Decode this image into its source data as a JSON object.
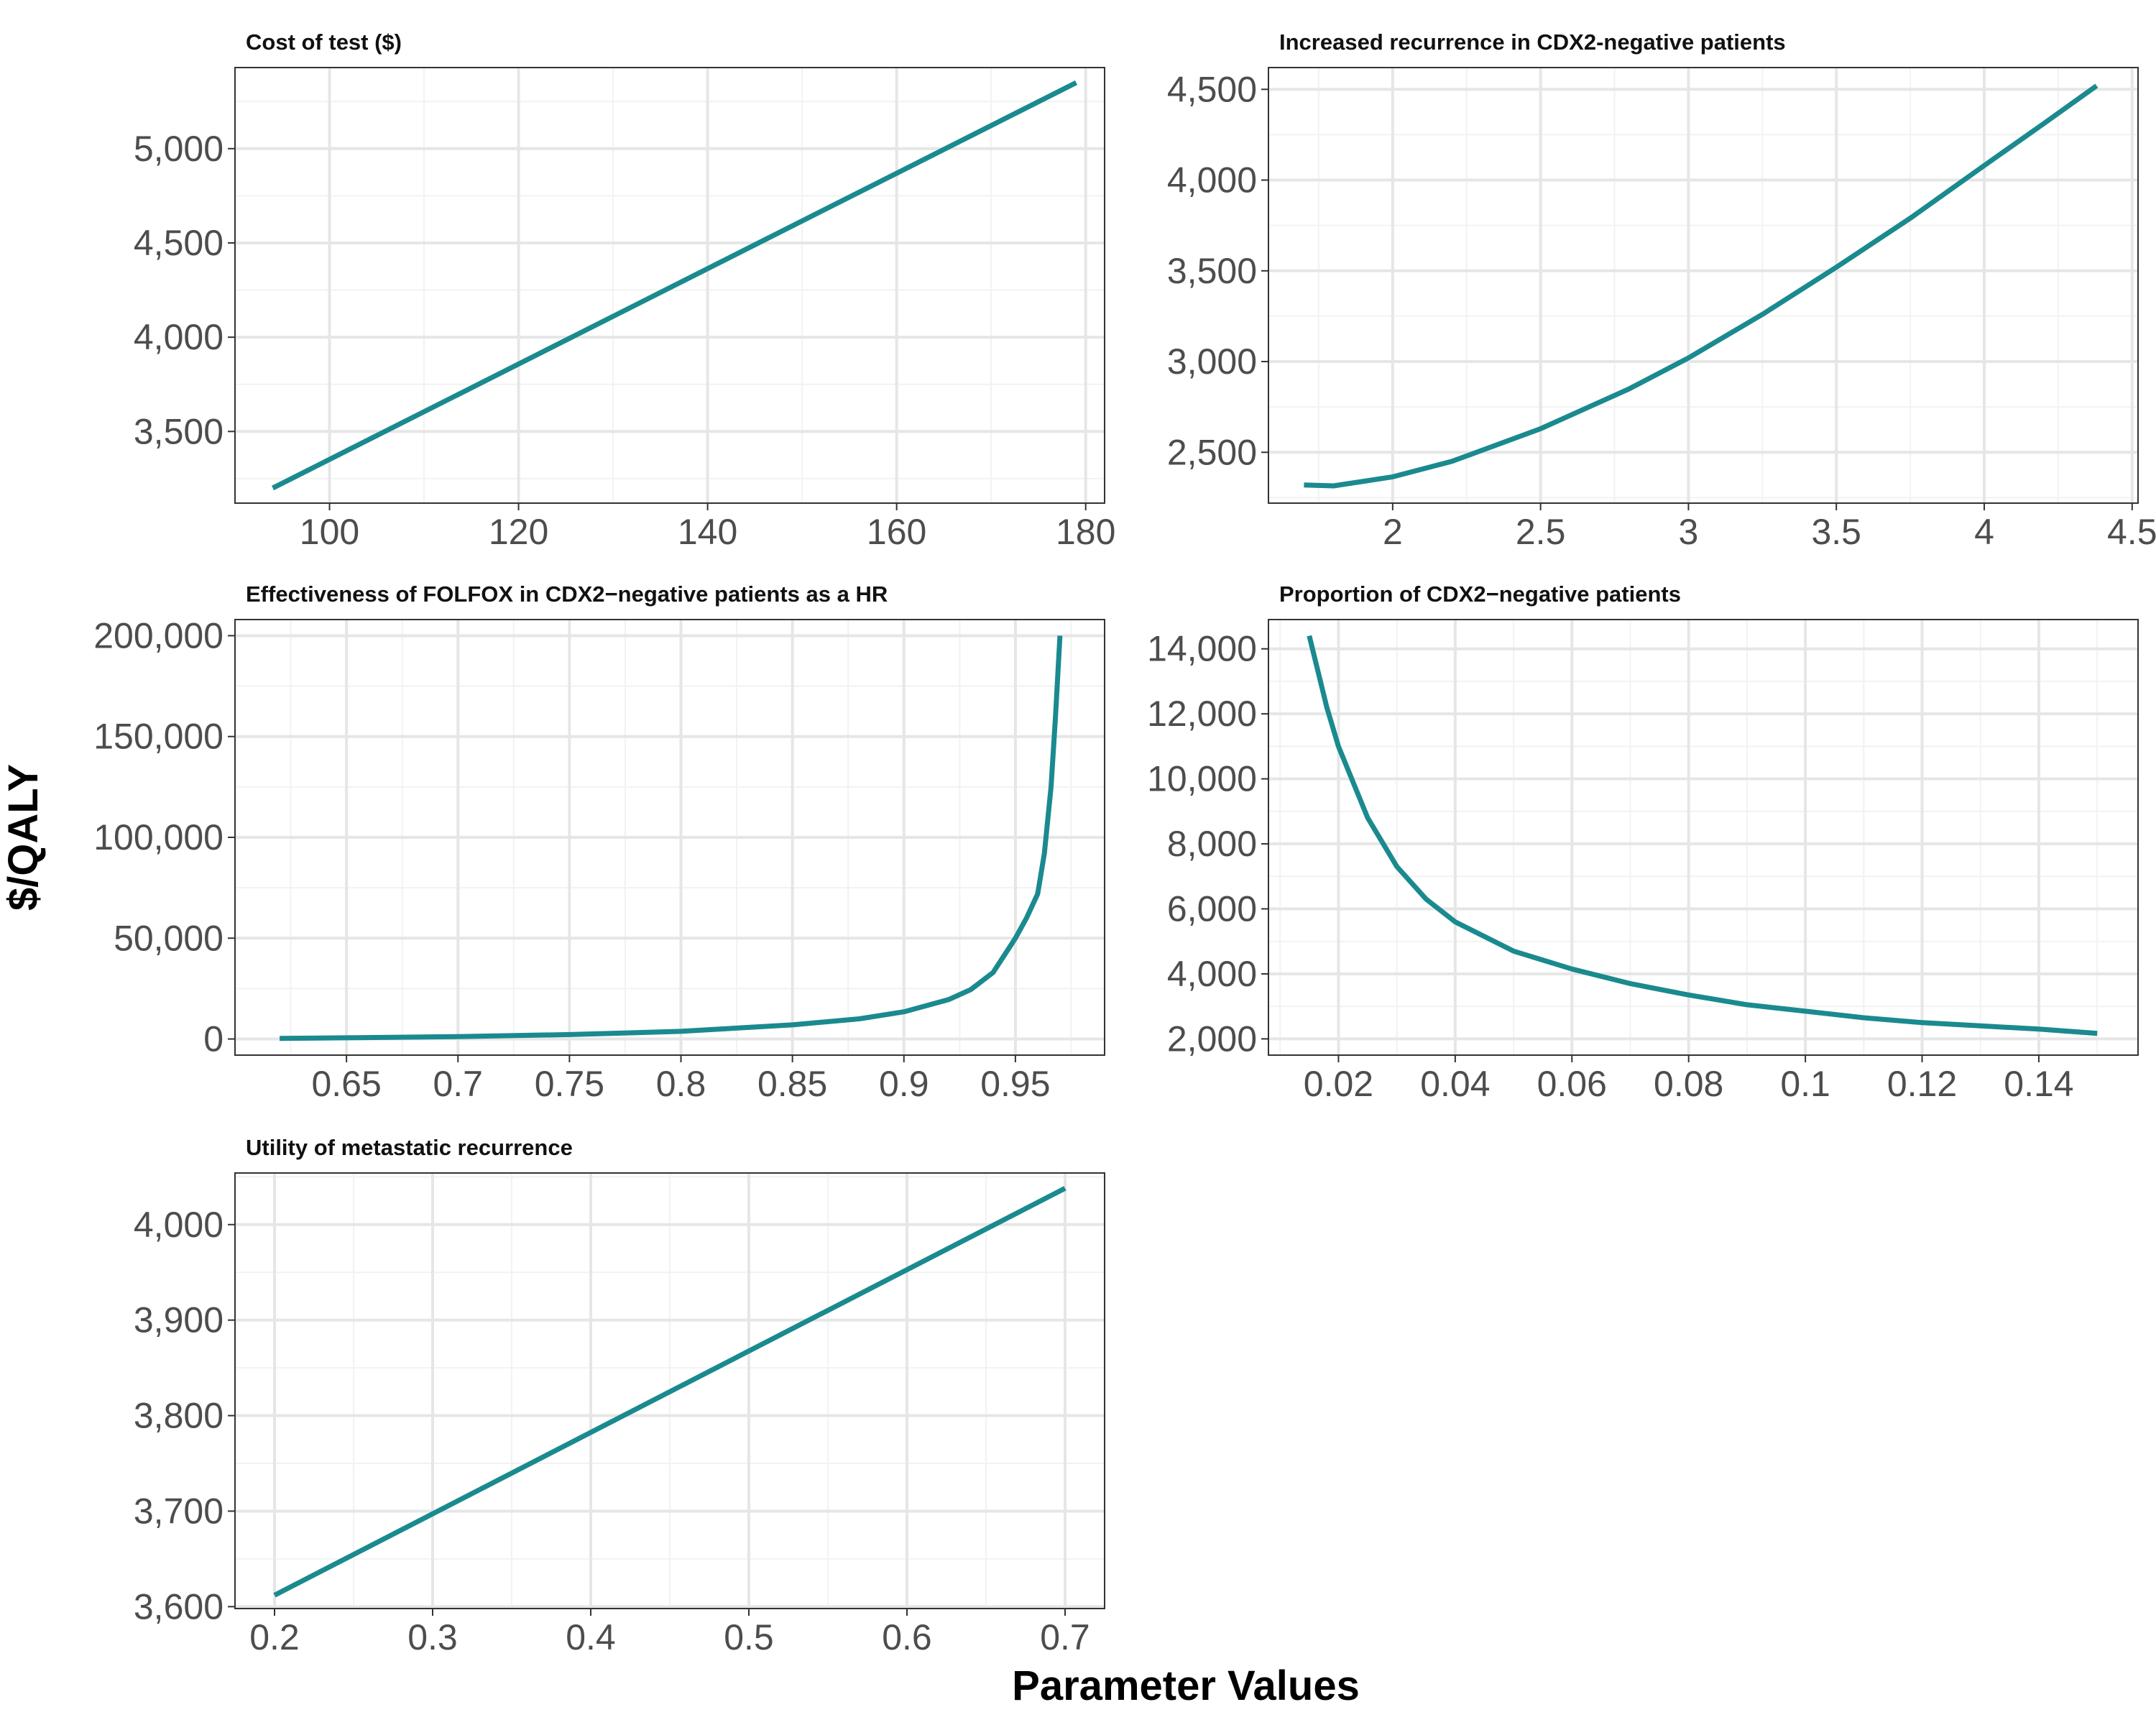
{
  "figure": {
    "ylabel": "$/QALY",
    "xlabel": "Parameter Values",
    "line_color": "#1a8a8f"
  },
  "chart_data": [
    {
      "type": "line",
      "title": "Cost of test ($)",
      "xlim": [
        90,
        182
      ],
      "ylim": [
        3120,
        5430
      ],
      "xticks": [
        100,
        120,
        140,
        160,
        180
      ],
      "xtick_labels": [
        "100",
        "120",
        "140",
        "160",
        "180"
      ],
      "yticks": [
        3500,
        4000,
        4500,
        5000
      ],
      "ytick_labels": [
        "3,500",
        "4,000",
        "4,500",
        "5,000"
      ],
      "series": [
        {
          "x": [
            94,
            179
          ],
          "y": [
            3200,
            5350
          ]
        }
      ]
    },
    {
      "type": "line",
      "title": "Increased recurrence in CDX2-negative patients",
      "xlim": [
        1.58,
        4.52
      ],
      "ylim": [
        2220,
        4620
      ],
      "xticks": [
        2,
        2.5,
        3,
        3.5,
        4,
        4.5
      ],
      "xtick_labels": [
        "2",
        "2.5",
        "3",
        "3.5",
        "4",
        "4.5"
      ],
      "yticks": [
        2500,
        3000,
        3500,
        4000,
        4500
      ],
      "ytick_labels": [
        "2,500",
        "3,000",
        "3,500",
        "4,000",
        "4,500"
      ],
      "series": [
        {
          "x": [
            1.7,
            1.8,
            2.0,
            2.2,
            2.5,
            2.8,
            3.0,
            3.25,
            3.5,
            3.75,
            4.0,
            4.2,
            4.38
          ],
          "y": [
            2320,
            2315,
            2365,
            2450,
            2630,
            2850,
            3020,
            3260,
            3520,
            3790,
            4080,
            4310,
            4520
          ]
        }
      ]
    },
    {
      "type": "line",
      "title": "Effectiveness of FOLFOX in CDX2−negative patients as a HR",
      "xlim": [
        0.6,
        0.99
      ],
      "ylim": [
        -8000,
        208000
      ],
      "xticks": [
        0.65,
        0.7,
        0.75,
        0.8,
        0.85,
        0.9,
        0.95
      ],
      "xtick_labels": [
        "0.65",
        "0.7",
        "0.75",
        "0.8",
        "0.85",
        "0.9",
        "0.95"
      ],
      "yticks": [
        0,
        50000,
        100000,
        150000,
        200000
      ],
      "ytick_labels": [
        "0",
        "50,000",
        "100,000",
        "150,000",
        "200,000"
      ],
      "series": [
        {
          "x": [
            0.62,
            0.65,
            0.7,
            0.75,
            0.8,
            0.85,
            0.88,
            0.9,
            0.92,
            0.93,
            0.94,
            0.95,
            0.955,
            0.96,
            0.963,
            0.966,
            0.968,
            0.97
          ],
          "y": [
            300,
            600,
            1200,
            2200,
            3800,
            7000,
            10000,
            13500,
            19500,
            24500,
            33000,
            50000,
            60000,
            72000,
            92000,
            125000,
            160000,
            200000
          ]
        }
      ]
    },
    {
      "type": "line",
      "title": "Proportion of CDX2−negative patients",
      "xlim": [
        0.008,
        0.157
      ],
      "ylim": [
        1500,
        14900
      ],
      "xticks": [
        0.02,
        0.04,
        0.06,
        0.08,
        0.1,
        0.12,
        0.14
      ],
      "xtick_labels": [
        "0.02",
        "0.04",
        "0.06",
        "0.08",
        "0.1",
        "0.12",
        "0.14"
      ],
      "yticks": [
        2000,
        4000,
        6000,
        8000,
        10000,
        12000,
        14000
      ],
      "ytick_labels": [
        "2,000",
        "4,000",
        "6,000",
        "8,000",
        "10,000",
        "12,000",
        "14,000"
      ],
      "series": [
        {
          "x": [
            0.015,
            0.018,
            0.02,
            0.025,
            0.03,
            0.035,
            0.04,
            0.05,
            0.06,
            0.07,
            0.08,
            0.09,
            0.1,
            0.11,
            0.12,
            0.13,
            0.14,
            0.15
          ],
          "y": [
            14400,
            12200,
            11000,
            8800,
            7300,
            6300,
            5600,
            4700,
            4150,
            3700,
            3350,
            3050,
            2850,
            2650,
            2500,
            2400,
            2300,
            2170
          ]
        }
      ]
    },
    {
      "type": "line",
      "title": "Utility of metastatic recurrence",
      "xlim": [
        0.175,
        0.725
      ],
      "ylim": [
        3598,
        4054
      ],
      "xticks": [
        0.2,
        0.3,
        0.4,
        0.5,
        0.6,
        0.7
      ],
      "xtick_labels": [
        "0.2",
        "0.3",
        "0.4",
        "0.5",
        "0.6",
        "0.7"
      ],
      "yticks": [
        3600,
        3700,
        3800,
        3900,
        4000
      ],
      "ytick_labels": [
        "3,600",
        "3,700",
        "3,800",
        "3,900",
        "4,000"
      ],
      "series": [
        {
          "x": [
            0.2,
            0.7
          ],
          "y": [
            3612,
            4038
          ]
        }
      ]
    }
  ]
}
